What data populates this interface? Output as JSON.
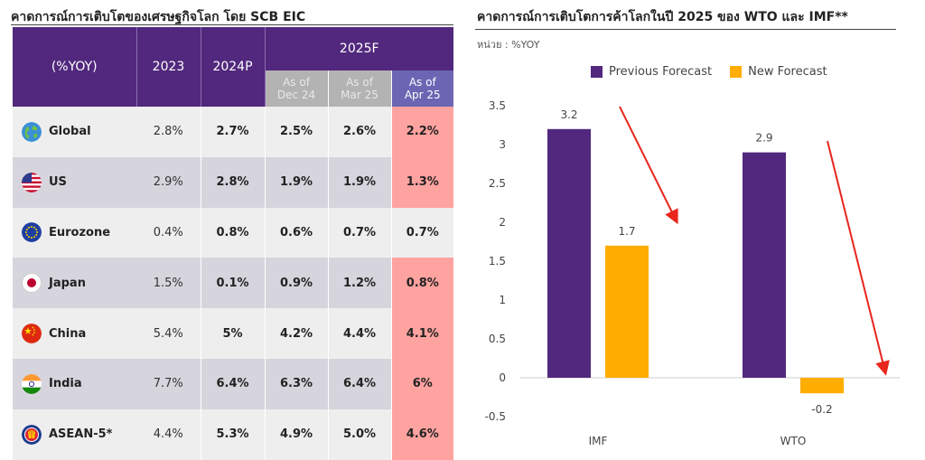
{
  "left_panel": {
    "title": "คาดการณ์การเติบโตของเศรษฐกิจโลก โดย SCB EIC",
    "header": {
      "label": "(%YOY)",
      "col_2023": "2023",
      "col_2024": "2024P",
      "col_2025": "2025F",
      "sub": [
        {
          "line1": "As of",
          "line2": "Dec 24"
        },
        {
          "line1": "As of",
          "line2": "Mar 25"
        },
        {
          "line1": "As of",
          "line2": "Apr 25"
        }
      ]
    },
    "rows": [
      {
        "region": "Global",
        "flag": "globe-icon",
        "y2023": "2.8%",
        "y2024": "2.7%",
        "dec24": "2.5%",
        "mar25": "2.6%",
        "apr25": "2.2%",
        "highlight": true
      },
      {
        "region": "US",
        "flag": "us-flag-icon",
        "y2023": "2.9%",
        "y2024": "2.8%",
        "dec24": "1.9%",
        "mar25": "1.9%",
        "apr25": "1.3%",
        "highlight": true
      },
      {
        "region": "Eurozone",
        "flag": "eu-flag-icon",
        "y2023": "0.4%",
        "y2024": "0.8%",
        "dec24": "0.6%",
        "mar25": "0.7%",
        "apr25": "0.7%",
        "highlight": false
      },
      {
        "region": "Japan",
        "flag": "japan-flag-icon",
        "y2023": "1.5%",
        "y2024": "0.1%",
        "dec24": "0.9%",
        "mar25": "1.2%",
        "apr25": "0.8%",
        "highlight": true
      },
      {
        "region": "China",
        "flag": "china-flag-icon",
        "y2023": "5.4%",
        "y2024": "5%",
        "dec24": "4.2%",
        "mar25": "4.4%",
        "apr25": "4.1%",
        "highlight": true
      },
      {
        "region": "India",
        "flag": "india-flag-icon",
        "y2023": "7.7%",
        "y2024": "6.4%",
        "dec24": "6.3%",
        "mar25": "6.4%",
        "apr25": "6%",
        "highlight": true
      },
      {
        "region": "ASEAN-5*",
        "flag": "asean-flag-icon",
        "y2023": "4.4%",
        "y2024": "5.3%",
        "dec24": "4.9%",
        "mar25": "5.0%",
        "apr25": "4.6%",
        "highlight": true
      }
    ],
    "colors": {
      "header": "#51287d",
      "highlight": "#ffa3a0"
    }
  },
  "right_panel": {
    "title": "คาดการณ์การเติบโตการค้าโลกในปี 2025 ของ WTO และ IMF**",
    "unit": "หน่วย : %YOY"
  },
  "chart_data": {
    "type": "bar",
    "categories": [
      "IMF",
      "WTO"
    ],
    "series": [
      {
        "name": "Previous Forecast",
        "values": [
          3.2,
          2.9
        ],
        "color": "#51287d"
      },
      {
        "name": "New Forecast",
        "values": [
          1.7,
          -0.2
        ],
        "color": "#ffad00"
      }
    ],
    "data_labels": [
      [
        "3.2",
        "2.9"
      ],
      [
        "1.7",
        "-0.2"
      ]
    ],
    "yticks": [
      "3.5",
      "3",
      "2.5",
      "2",
      "1.5",
      "1",
      "0.5",
      "0",
      "-0.5"
    ],
    "ylim": [
      -0.5,
      3.5
    ],
    "legend": "top",
    "grid": false,
    "annotations": "red arrows pointing from previous to new forecast",
    "arrow_color": "#e8261c"
  }
}
